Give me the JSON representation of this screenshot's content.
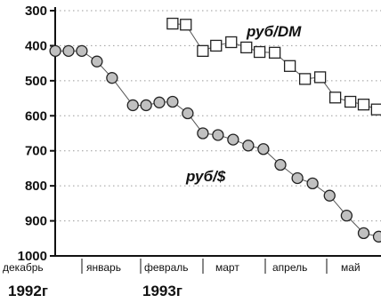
{
  "chart_data": {
    "type": "scatter",
    "ylim": [
      300,
      1000
    ],
    "y_inverted": true,
    "yticks": [
      300,
      400,
      500,
      600,
      700,
      800,
      900,
      1000
    ],
    "grid": "horizontal dotted",
    "x_months": [
      "декабрь",
      "январь",
      "февраль",
      "март",
      "апрель",
      "май"
    ],
    "x_years": [
      "1992г",
      "1993г"
    ],
    "series": [
      {
        "name": "руб/$",
        "marker": "circle",
        "marker_color": "#c0c0c0",
        "points": [
          {
            "x": 0.05,
            "y": 415
          },
          {
            "x": 0.4,
            "y": 415
          },
          {
            "x": 0.75,
            "y": 415
          },
          {
            "x": 1.15,
            "y": 445
          },
          {
            "x": 1.55,
            "y": 492
          },
          {
            "x": 2.1,
            "y": 570
          },
          {
            "x": 2.45,
            "y": 570
          },
          {
            "x": 2.8,
            "y": 562
          },
          {
            "x": 3.15,
            "y": 560
          },
          {
            "x": 3.55,
            "y": 593
          },
          {
            "x": 3.95,
            "y": 650
          },
          {
            "x": 4.35,
            "y": 655
          },
          {
            "x": 4.75,
            "y": 668
          },
          {
            "x": 5.15,
            "y": 685
          },
          {
            "x": 5.55,
            "y": 695
          },
          {
            "x": 6.0,
            "y": 740
          },
          {
            "x": 6.45,
            "y": 778
          },
          {
            "x": 6.85,
            "y": 793
          },
          {
            "x": 7.3,
            "y": 828
          },
          {
            "x": 7.75,
            "y": 885
          },
          {
            "x": 8.2,
            "y": 935
          },
          {
            "x": 8.6,
            "y": 945
          }
        ]
      },
      {
        "name": "руб/DM",
        "marker": "square",
        "marker_color": "#ffffff",
        "points": [
          {
            "x": 3.15,
            "y": 337
          },
          {
            "x": 3.5,
            "y": 340
          },
          {
            "x": 3.95,
            "y": 415
          },
          {
            "x": 4.3,
            "y": 400
          },
          {
            "x": 4.7,
            "y": 390
          },
          {
            "x": 5.1,
            "y": 405
          },
          {
            "x": 5.45,
            "y": 418
          },
          {
            "x": 5.85,
            "y": 420
          },
          {
            "x": 6.25,
            "y": 458
          },
          {
            "x": 6.65,
            "y": 495
          },
          {
            "x": 7.05,
            "y": 490
          },
          {
            "x": 7.45,
            "y": 548
          },
          {
            "x": 7.85,
            "y": 560
          },
          {
            "x": 8.2,
            "y": 568
          },
          {
            "x": 8.55,
            "y": 582
          }
        ]
      }
    ]
  }
}
